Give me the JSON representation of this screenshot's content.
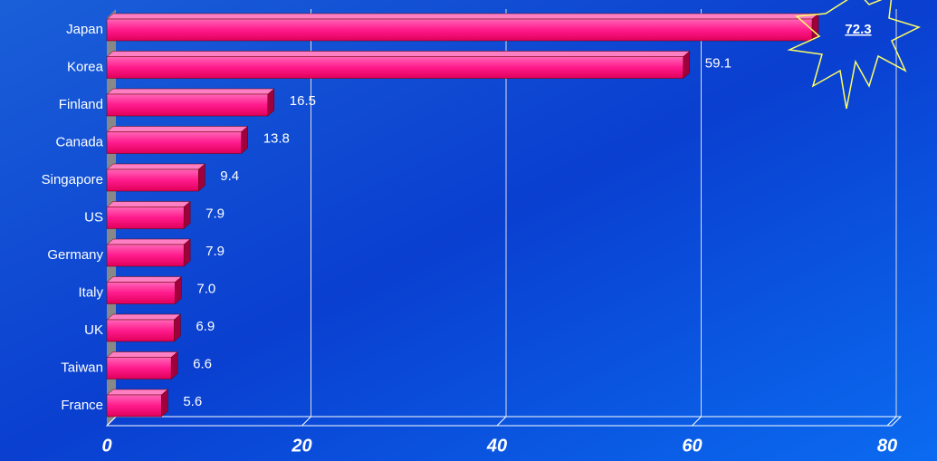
{
  "chart_data": {
    "type": "bar",
    "orientation": "horizontal",
    "categories": [
      "Japan",
      "Korea",
      "Finland",
      "Canada",
      "Singapore",
      "US",
      "Germany",
      "Italy",
      "UK",
      "Taiwan",
      "France"
    ],
    "values": [
      72.3,
      59.1,
      16.5,
      13.8,
      9.4,
      7.9,
      7.9,
      7.0,
      6.9,
      6.6,
      5.6
    ],
    "value_labels": [
      "72.3",
      "59.1",
      "16.5",
      "13.8",
      "9.4",
      "7.9",
      "7.9",
      "7.0",
      "6.9",
      "6.6",
      "5.6"
    ],
    "color": "#ff1a8c",
    "xlim": [
      0,
      80
    ],
    "xticks": [
      0,
      20,
      40,
      60,
      80
    ],
    "grid": true
  }
}
